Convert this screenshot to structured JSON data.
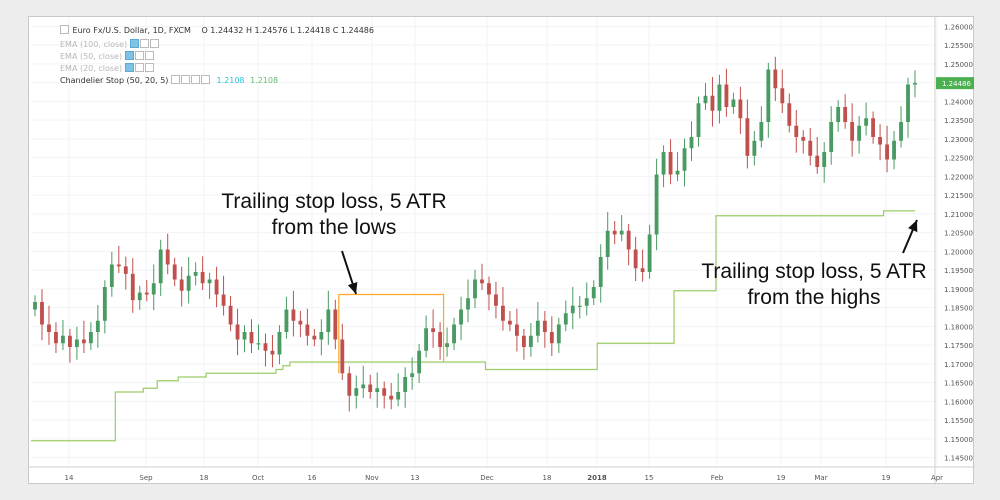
{
  "chart_data": {
    "type": "candlestick",
    "title": "Euro Fx/U.S. Dollar, 1D, FXCM",
    "ohlc_label": {
      "o": "O 1.24432",
      "h": "H 1.24576",
      "l": "L 1.24418",
      "c": "C 1.24486"
    },
    "indicators": [
      {
        "name": "EMA (100, close)",
        "visible": false
      },
      {
        "name": "EMA (50, close)",
        "visible": false
      },
      {
        "name": "EMA (20, close)",
        "visible": false
      },
      {
        "name": "Chandelier Stop (50, 20, 5)",
        "visible": true,
        "values": [
          "1.2108",
          "1.2108"
        ],
        "value_colors": [
          "#26c6da",
          "#66bb6a"
        ]
      }
    ],
    "x_tick_labels": [
      "14",
      "Sep",
      "18",
      "Oct",
      "16",
      "Nov",
      "13",
      "Dec",
      "18",
      "2018",
      "15",
      "Feb",
      "19",
      "Mar",
      "19",
      "Apr"
    ],
    "y_tick_labels": [
      "1.26000",
      "1.25500",
      "1.25000",
      "1.24500",
      "1.24000",
      "1.23500",
      "1.23000",
      "1.22500",
      "1.22000",
      "1.21500",
      "1.21000",
      "1.20500",
      "1.20000",
      "1.19500",
      "1.19000",
      "1.18500",
      "1.18000",
      "1.17500",
      "1.17000",
      "1.16500",
      "1.16000",
      "1.15500",
      "1.15000",
      "1.14500"
    ],
    "ylim": [
      1.1425,
      1.2625
    ],
    "last_price": "1.24486",
    "colors": {
      "up": "#4a9a63",
      "down": "#c0504d",
      "stop_long": "#9ccc65",
      "stop_short": "#ffa726",
      "price_badge": "#4caf50"
    },
    "close": [
      1.1865,
      1.1805,
      1.1785,
      1.1755,
      1.1775,
      1.1745,
      1.1765,
      1.1755,
      1.1785,
      1.1815,
      1.1905,
      1.1965,
      1.196,
      1.194,
      1.187,
      1.189,
      1.1885,
      1.1915,
      1.2005,
      1.1965,
      1.1925,
      1.1895,
      1.1935,
      1.1945,
      1.1915,
      1.1925,
      1.1885,
      1.1855,
      1.1805,
      1.1765,
      1.1785,
      1.1755,
      1.1755,
      1.1735,
      1.1725,
      1.1785,
      1.1845,
      1.1815,
      1.1805,
      1.1775,
      1.1765,
      1.1785,
      1.1845,
      1.1765,
      1.1675,
      1.1615,
      1.1635,
      1.1645,
      1.1625,
      1.1635,
      1.1615,
      1.1605,
      1.1625,
      1.1665,
      1.1675,
      1.1735,
      1.1795,
      1.1785,
      1.1745,
      1.1755,
      1.1805,
      1.1845,
      1.1875,
      1.1925,
      1.1915,
      1.1885,
      1.1855,
      1.1815,
      1.1805,
      1.1775,
      1.1745,
      1.1775,
      1.1815,
      1.1785,
      1.1755,
      1.1805,
      1.1835,
      1.1855,
      1.1855,
      1.1875,
      1.1905,
      1.1985,
      1.2055,
      1.2045,
      1.2055,
      1.2005,
      1.1955,
      1.1945,
      1.2045,
      1.2205,
      1.2265,
      1.2205,
      1.2215,
      1.2275,
      1.2305,
      1.2395,
      1.2415,
      1.2375,
      1.2445,
      1.2385,
      1.2405,
      1.2355,
      1.2255,
      1.2295,
      1.2345,
      1.2485,
      1.2435,
      1.2395,
      1.2335,
      1.2305,
      1.2295,
      1.2255,
      1.2225,
      1.2265,
      1.2345,
      1.2385,
      1.2345,
      1.2295,
      1.2335,
      1.2355,
      1.2305,
      1.2285,
      1.2245,
      1.2295,
      1.2345,
      1.2445,
      1.2449
    ],
    "chandelier_stop_long": [
      1.1495,
      1.1495,
      1.1495,
      1.1495,
      1.1495,
      1.1495,
      1.1495,
      1.1495,
      1.1495,
      1.1495,
      1.1495,
      1.1495,
      1.1625,
      1.1625,
      1.1625,
      1.1625,
      1.1635,
      1.1635,
      1.1655,
      1.1655,
      1.1655,
      1.1665,
      1.1665,
      1.1665,
      1.1665,
      1.1675,
      1.1675,
      1.1675,
      1.1675,
      1.1675,
      1.1675,
      1.1675,
      1.1675,
      1.1675,
      1.1675,
      1.1685,
      1.1695,
      1.1705,
      1.1705,
      1.1705,
      1.1705,
      1.1705,
      1.1705,
      1.1705,
      1.1705,
      1.1705,
      1.1705,
      1.1705,
      1.1705,
      1.1705,
      1.1705,
      1.1705,
      1.1705,
      1.1705,
      1.1705,
      1.1705,
      1.1705,
      1.1705,
      1.1705,
      1.1705,
      1.1705,
      1.1705,
      1.1705,
      1.1705,
      1.1705,
      1.1685,
      1.1685,
      1.1685,
      1.1685,
      1.1685,
      1.1685,
      1.1685,
      1.1685,
      1.1685,
      1.1685,
      1.1685,
      1.1685,
      1.1685,
      1.1685,
      1.1685,
      1.1685,
      1.1755,
      1.1755,
      1.1755,
      1.1755,
      1.1755,
      1.1755,
      1.1755,
      1.1755,
      1.1755,
      1.1755,
      1.1755,
      1.1895,
      1.1895,
      1.1895,
      1.1895,
      1.1895,
      1.1895,
      1.2095,
      1.2095,
      1.2095,
      1.2095,
      1.2095,
      1.2095,
      1.2095,
      1.2095,
      1.2095,
      1.2095,
      1.2095,
      1.2095,
      1.2095,
      1.2095,
      1.2095,
      1.2095,
      1.2095,
      1.2095,
      1.2095,
      1.2095,
      1.2095,
      1.2095,
      1.2095,
      1.2095,
      1.2108,
      1.2108,
      1.2108,
      1.2108,
      1.2108
    ],
    "chandelier_stop_short": {
      "start_index": 44,
      "end_index": 58,
      "value": 1.1885
    }
  },
  "annotations": {
    "left": {
      "line1": "Trailing stop loss, 5 ATR",
      "line2": "from the lows"
    },
    "right": {
      "line1": "Trailing stop loss, 5 ATR",
      "line2": "from the highs"
    }
  }
}
